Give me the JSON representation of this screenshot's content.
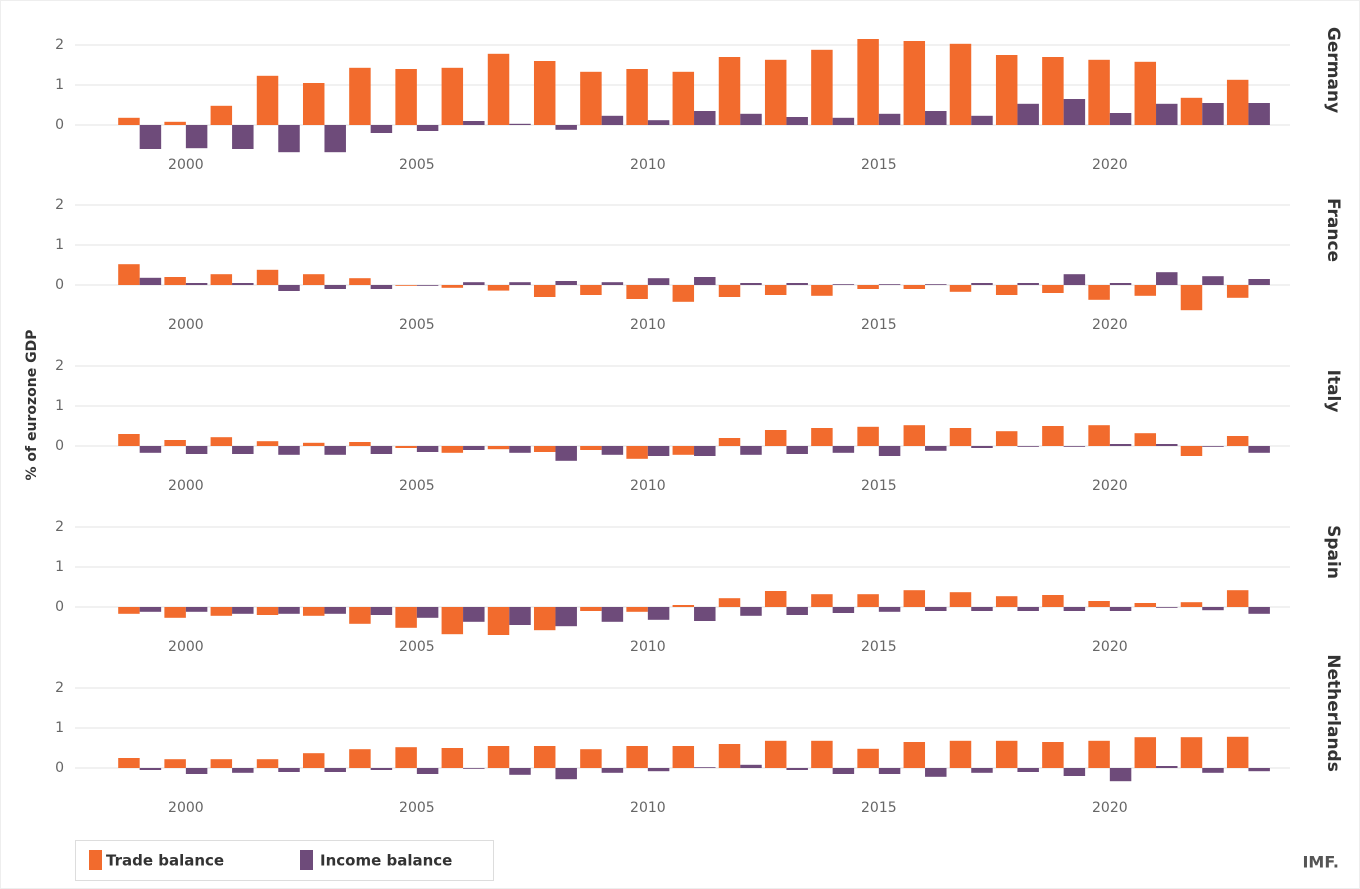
{
  "ylabel": "% of eurozone GDP",
  "source": "IMF.",
  "chart_data": [
    {
      "type": "bar",
      "title": "Germany",
      "x": [
        1999,
        2000,
        2001,
        2002,
        2003,
        2004,
        2005,
        2006,
        2007,
        2008,
        2009,
        2010,
        2011,
        2012,
        2013,
        2014,
        2015,
        2016,
        2017,
        2018,
        2019,
        2020,
        2021,
        2022,
        2023
      ],
      "xlim": [
        1997.6,
        2023.9
      ],
      "xticks": [
        2000,
        2005,
        2010,
        2015,
        2020
      ],
      "ylim": [
        -1,
        2.2
      ],
      "yticks": [
        0,
        1,
        2
      ],
      "grid": true,
      "series": [
        {
          "name": "Trade balance",
          "color": "#f26b2d",
          "values": [
            0.18,
            0.08,
            0.48,
            1.23,
            1.05,
            1.43,
            1.4,
            1.43,
            1.78,
            1.6,
            1.33,
            1.4,
            1.33,
            1.7,
            1.63,
            1.88,
            2.15,
            2.1,
            2.03,
            1.75,
            1.7,
            1.63,
            1.58,
            0.68,
            1.13
          ]
        },
        {
          "name": "Income balance",
          "color": "#6e4b7a",
          "values": [
            -0.6,
            -0.58,
            -0.6,
            -0.68,
            -0.68,
            -0.2,
            -0.15,
            0.1,
            0.03,
            -0.12,
            0.23,
            0.12,
            0.35,
            0.28,
            0.2,
            0.18,
            0.28,
            0.35,
            0.23,
            0.53,
            0.65,
            0.3,
            0.53,
            0.55,
            0.55
          ]
        }
      ]
    },
    {
      "type": "bar",
      "title": "France",
      "x": [
        1999,
        2000,
        2001,
        2002,
        2003,
        2004,
        2005,
        2006,
        2007,
        2008,
        2009,
        2010,
        2011,
        2012,
        2013,
        2014,
        2015,
        2016,
        2017,
        2018,
        2019,
        2020,
        2021,
        2022,
        2023
      ],
      "xlim": [
        1997.6,
        2023.9
      ],
      "xticks": [
        2000,
        2005,
        2010,
        2015,
        2020
      ],
      "ylim": [
        -1,
        2.2
      ],
      "yticks": [
        0,
        1,
        2
      ],
      "grid": true,
      "series": [
        {
          "name": "Trade balance",
          "color": "#f26b2d",
          "values": [
            0.52,
            0.2,
            0.27,
            0.38,
            0.27,
            0.17,
            -0.02,
            -0.07,
            -0.14,
            -0.3,
            -0.25,
            -0.35,
            -0.42,
            -0.3,
            -0.25,
            -0.27,
            -0.1,
            -0.1,
            -0.17,
            -0.25,
            -0.2,
            -0.37,
            -0.27,
            -0.63,
            -0.32
          ]
        },
        {
          "name": "Income balance",
          "color": "#6e4b7a",
          "values": [
            0.18,
            0.05,
            0.05,
            -0.15,
            -0.1,
            -0.1,
            -0.02,
            0.07,
            0.07,
            0.1,
            0.07,
            0.17,
            0.2,
            0.05,
            0.05,
            0.02,
            0.02,
            0.02,
            0.05,
            0.05,
            0.27,
            0.05,
            0.32,
            0.22,
            0.15
          ]
        }
      ]
    },
    {
      "type": "bar",
      "title": "Italy",
      "x": [
        1999,
        2000,
        2001,
        2002,
        2003,
        2004,
        2005,
        2006,
        2007,
        2008,
        2009,
        2010,
        2011,
        2012,
        2013,
        2014,
        2015,
        2016,
        2017,
        2018,
        2019,
        2020,
        2021,
        2022,
        2023
      ],
      "xlim": [
        1997.6,
        2023.9
      ],
      "xticks": [
        2000,
        2005,
        2010,
        2015,
        2020
      ],
      "ylim": [
        -1,
        2.2
      ],
      "yticks": [
        0,
        1,
        2
      ],
      "grid": true,
      "series": [
        {
          "name": "Trade balance",
          "color": "#f26b2d",
          "values": [
            0.3,
            0.15,
            0.22,
            0.12,
            0.08,
            0.1,
            -0.05,
            -0.17,
            -0.08,
            -0.15,
            -0.1,
            -0.32,
            -0.22,
            0.2,
            0.4,
            0.45,
            0.48,
            0.52,
            0.45,
            0.37,
            0.5,
            0.52,
            0.32,
            -0.25,
            0.25
          ]
        },
        {
          "name": "Income balance",
          "color": "#6e4b7a",
          "values": [
            -0.17,
            -0.2,
            -0.2,
            -0.22,
            -0.22,
            -0.2,
            -0.15,
            -0.1,
            -0.17,
            -0.37,
            -0.22,
            -0.25,
            -0.25,
            -0.22,
            -0.2,
            -0.17,
            -0.25,
            -0.12,
            -0.05,
            -0.02,
            -0.02,
            0.05,
            0.05,
            -0.02,
            -0.17
          ]
        }
      ]
    },
    {
      "type": "bar",
      "title": "Spain",
      "x": [
        1999,
        2000,
        2001,
        2002,
        2003,
        2004,
        2005,
        2006,
        2007,
        2008,
        2009,
        2010,
        2011,
        2012,
        2013,
        2014,
        2015,
        2016,
        2017,
        2018,
        2019,
        2020,
        2021,
        2022,
        2023
      ],
      "xlim": [
        1997.6,
        2023.9
      ],
      "xticks": [
        2000,
        2005,
        2010,
        2015,
        2020
      ],
      "ylim": [
        -1,
        2.2
      ],
      "yticks": [
        0,
        1,
        2
      ],
      "grid": true,
      "series": [
        {
          "name": "Trade balance",
          "color": "#f26b2d",
          "values": [
            -0.17,
            -0.27,
            -0.22,
            -0.2,
            -0.22,
            -0.42,
            -0.52,
            -0.68,
            -0.7,
            -0.58,
            -0.1,
            -0.12,
            0.05,
            0.22,
            0.4,
            0.32,
            0.32,
            0.42,
            0.37,
            0.27,
            0.3,
            0.15,
            0.1,
            0.12,
            0.42
          ]
        },
        {
          "name": "Income balance",
          "color": "#6e4b7a",
          "values": [
            -0.12,
            -0.12,
            -0.17,
            -0.17,
            -0.17,
            -0.2,
            -0.27,
            -0.37,
            -0.45,
            -0.48,
            -0.37,
            -0.32,
            -0.35,
            -0.22,
            -0.2,
            -0.15,
            -0.12,
            -0.1,
            -0.1,
            -0.1,
            -0.1,
            -0.1,
            -0.02,
            -0.08,
            -0.17
          ]
        }
      ]
    },
    {
      "type": "bar",
      "title": "Netherlands",
      "x": [
        1999,
        2000,
        2001,
        2002,
        2003,
        2004,
        2005,
        2006,
        2007,
        2008,
        2009,
        2010,
        2011,
        2012,
        2013,
        2014,
        2015,
        2016,
        2017,
        2018,
        2019,
        2020,
        2021,
        2022,
        2023
      ],
      "xlim": [
        1997.6,
        2023.9
      ],
      "xticks": [
        2000,
        2005,
        2010,
        2015,
        2020
      ],
      "ylim": [
        -1,
        2.2
      ],
      "yticks": [
        0,
        1,
        2
      ],
      "grid": true,
      "series": [
        {
          "name": "Trade balance",
          "color": "#f26b2d",
          "values": [
            0.25,
            0.22,
            0.22,
            0.22,
            0.37,
            0.47,
            0.52,
            0.5,
            0.55,
            0.55,
            0.47,
            0.55,
            0.55,
            0.6,
            0.68,
            0.68,
            0.48,
            0.65,
            0.68,
            0.68,
            0.65,
            0.68,
            0.77,
            0.77,
            0.78
          ]
        },
        {
          "name": "Income balance",
          "color": "#6e4b7a",
          "values": [
            -0.05,
            -0.15,
            -0.12,
            -0.1,
            -0.1,
            -0.05,
            -0.15,
            -0.02,
            -0.17,
            -0.28,
            -0.12,
            -0.08,
            0.02,
            0.08,
            -0.05,
            -0.15,
            -0.15,
            -0.22,
            -0.12,
            -0.1,
            -0.2,
            -0.33,
            0.05,
            -0.12,
            -0.08
          ]
        }
      ]
    }
  ]
}
